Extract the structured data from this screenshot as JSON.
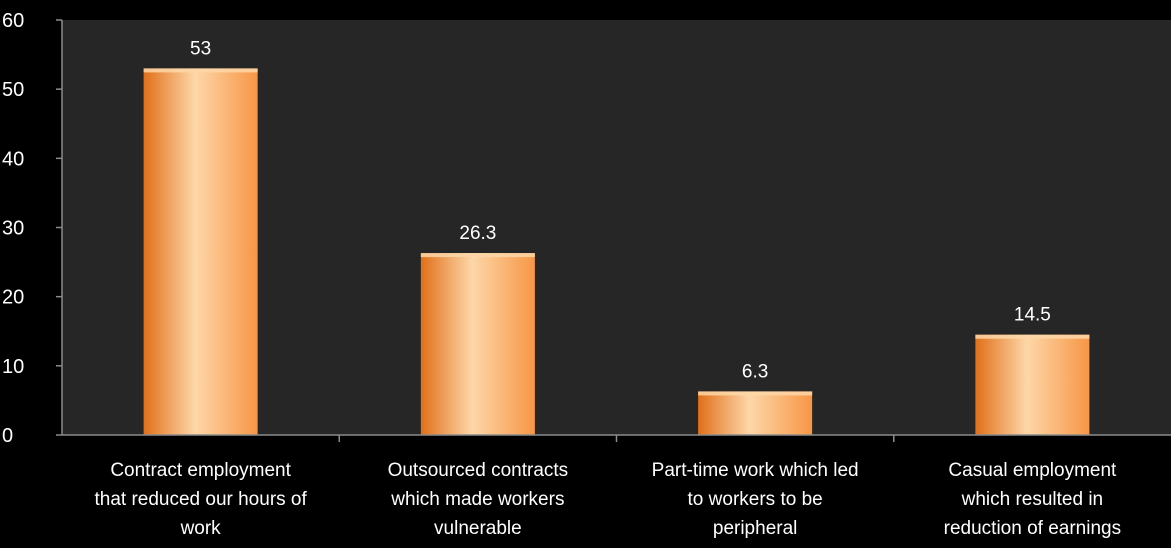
{
  "chart_data": {
    "type": "bar",
    "categories": [
      [
        "Contract employment",
        "that reduced our hours of",
        "work"
      ],
      [
        "Outsourced contracts",
        "which made workers",
        "vulnerable"
      ],
      [
        "Part-time work which led",
        "to workers to be",
        "peripheral"
      ],
      [
        "Casual employment",
        "which resulted in",
        "reduction of earnings"
      ]
    ],
    "values": [
      53,
      26.3,
      6.3,
      14.5
    ],
    "data_labels": [
      "53",
      "26.3",
      "6.3",
      "14.5"
    ],
    "y_ticks": [
      "0",
      "10",
      "20",
      "30",
      "40",
      "50",
      "60"
    ],
    "ylim": [
      0,
      60
    ],
    "title": "",
    "xlabel": "",
    "ylabel": "",
    "grid": false,
    "legend": "none",
    "colors": {
      "bar": "#f79646",
      "bar_light": "#fdd7a8",
      "bar_dark": "#e0701a",
      "plot_background": "#262626",
      "page_background": "#000000",
      "axis": "#8c8c8c",
      "text": "#ffffff"
    }
  }
}
